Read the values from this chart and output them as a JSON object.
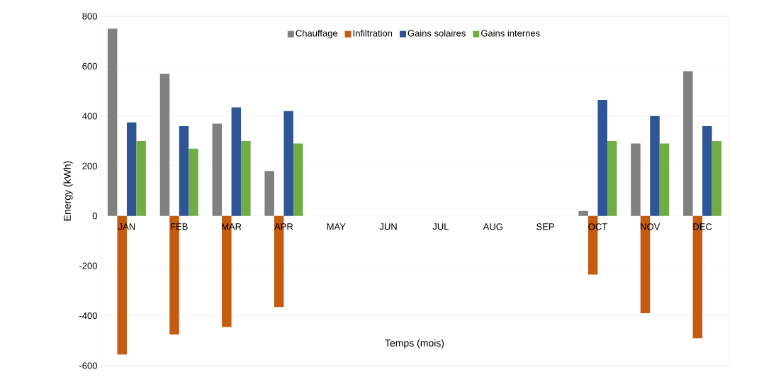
{
  "chart_data": {
    "type": "bar",
    "xlabel": "Temps (mois)",
    "ylabel": "Energy (kWh)",
    "categories": [
      "JAN",
      "FEB",
      "MAR",
      "APR",
      "MAY",
      "JUN",
      "JUL",
      "AUG",
      "SEP",
      "OCT",
      "NOV",
      "DEC"
    ],
    "series": [
      {
        "name": "Chauffage",
        "color": "#808080",
        "values": [
          750,
          570,
          370,
          180,
          null,
          null,
          null,
          null,
          null,
          20,
          290,
          580
        ]
      },
      {
        "name": "Infiltration",
        "color": "#c55a11",
        "values": [
          -555,
          -475,
          -445,
          -365,
          null,
          null,
          null,
          null,
          null,
          -235,
          -390,
          -490
        ]
      },
      {
        "name": "Gains solaires",
        "color": "#2f5597",
        "values": [
          375,
          360,
          435,
          420,
          null,
          null,
          null,
          null,
          null,
          465,
          400,
          360
        ]
      },
      {
        "name": "Gains internes",
        "color": "#70ad47",
        "values": [
          300,
          270,
          300,
          290,
          null,
          null,
          null,
          null,
          null,
          300,
          290,
          300
        ]
      }
    ],
    "ylim": [
      -600,
      800
    ],
    "yticks": [
      -600,
      -400,
      -200,
      0,
      200,
      400,
      600,
      800
    ],
    "grid": true,
    "legend": "top"
  }
}
